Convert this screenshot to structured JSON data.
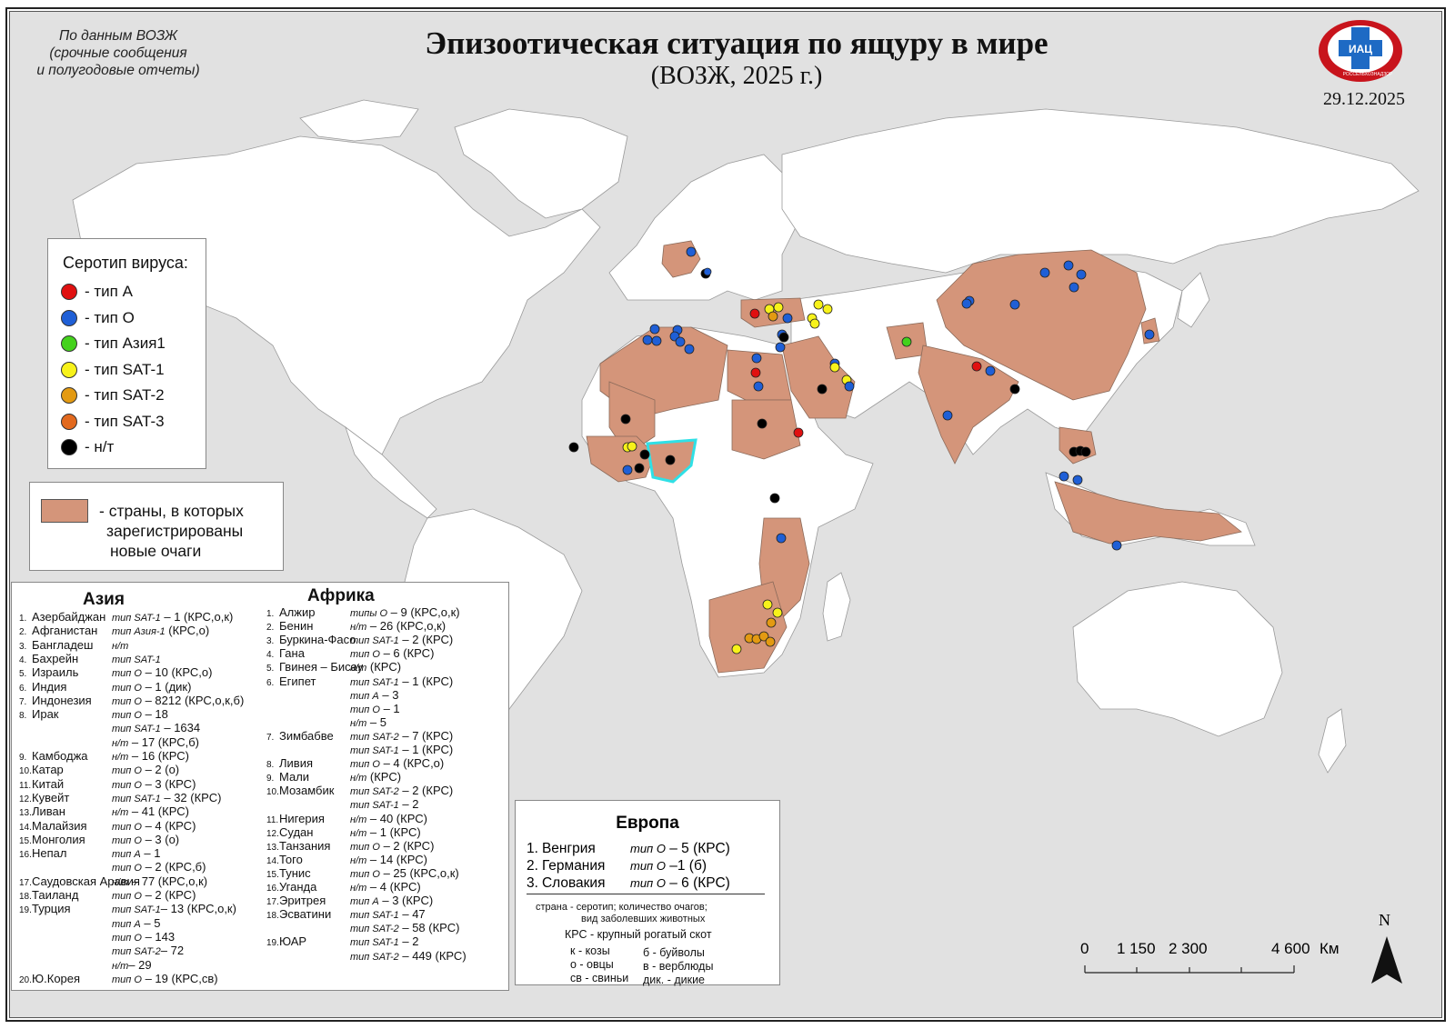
{
  "header": {
    "title": "Эпизоотическая ситуация по ящуру в мире",
    "subtitle": "(ВОЗЖ,  2025 г.)",
    "source_lines": [
      "По данным ВОЗЖ",
      "(срочные сообщения",
      "и полугодовые отчеты)"
    ],
    "date": "29.12.2025",
    "logo_text": "ИАЦ",
    "logo_caption": "РОССЕЛЬХОЗНАДЗОР"
  },
  "legend": {
    "title": "Серотип вируса:",
    "items": [
      {
        "label": "- тип А",
        "color": "#e01010"
      },
      {
        "label": "- тип О",
        "color": "#1f5fd6"
      },
      {
        "label": "- тип Азия1",
        "color": "#44d21c"
      },
      {
        "label": "- тип SAT-1",
        "color": "#f7f21a"
      },
      {
        "label": "- тип SAT-2",
        "color": "#e39a12"
      },
      {
        "label": "- тип SAT-3",
        "color": "#e2691e"
      },
      {
        "label": "- н/т",
        "color": "#000000"
      }
    ]
  },
  "country_legend": {
    "lines": [
      "- страны, в которых",
      "зарегистрированы",
      "новые очаги"
    ],
    "color": "#d4957a"
  },
  "asia": {
    "header": "Азия",
    "rows": [
      {
        "n": "1.",
        "c": "Азербайджан",
        "t": "тип SAT-1",
        "v": " – 1 (КРС,о,к)"
      },
      {
        "n": "2.",
        "c": "Афганистан",
        "t": "тип Азия-1",
        "v": " (КРС,о)"
      },
      {
        "n": "3.",
        "c": "Бангладеш",
        "t": "н/т",
        "v": ""
      },
      {
        "n": "4.",
        "c": "Бахрейн",
        "t": "тип SAT-1",
        "v": ""
      },
      {
        "n": "5.",
        "c": "Израиль",
        "t": "тип О",
        "v": " – 10 (КРС,о)"
      },
      {
        "n": "6.",
        "c": "Индия",
        "t": "тип О",
        "v": " – 1 (дик)"
      },
      {
        "n": "7.",
        "c": "Индонезия",
        "t": "тип О",
        "v": " – 8212 (КРС,о,к,б)"
      },
      {
        "n": "8.",
        "c": "Ирак",
        "t": "тип О",
        "v": " – 18"
      },
      {
        "n": "",
        "c": "",
        "t": "тип SAT-1",
        "v": " – 1634"
      },
      {
        "n": "",
        "c": "",
        "t": "н/т",
        "v": " – 17 (КРС,б)"
      },
      {
        "n": "9.",
        "c": "Камбоджа",
        "t": "н/т",
        "v": " – 16 (КРС)"
      },
      {
        "n": "10.",
        "c": "Катар",
        "t": "тип О",
        "v": " – 2 (о)"
      },
      {
        "n": "11.",
        "c": "Китай",
        "t": "тип О",
        "v": " – 3 (КРС)"
      },
      {
        "n": "12.",
        "c": "Кувейт",
        "t": "тип SAT-1",
        "v": " – 32 (КРС)"
      },
      {
        "n": "13.",
        "c": "Ливан",
        "t": "н/т",
        "v": " – 41 (КРС)"
      },
      {
        "n": "14.",
        "c": "Малайзия",
        "t": "тип О",
        "v": " – 4 (КРС)"
      },
      {
        "n": "15.",
        "c": "Монголия",
        "t": "тип О",
        "v": " – 3 (о)"
      },
      {
        "n": "16.",
        "c": "Непал",
        "t": "тип А",
        "v": " – 1"
      },
      {
        "n": "",
        "c": "",
        "t": "тип О",
        "v": " – 2 (КРС,б)"
      },
      {
        "n": "17.",
        "c": "Саудовская Аравия",
        "t": "н/т",
        "v": " – 77 (КРС,о,к)"
      },
      {
        "n": "18.",
        "c": "Таиланд",
        "t": "тип О",
        "v": " – 2 (КРС)"
      },
      {
        "n": "19.",
        "c": "Турция",
        "t": "тип SAT-1",
        "v": "– 13 (КРС,о,к)"
      },
      {
        "n": "",
        "c": "",
        "t": "тип А",
        "v": " – 5"
      },
      {
        "n": "",
        "c": "",
        "t": "тип О",
        "v": " – 143"
      },
      {
        "n": "",
        "c": "",
        "t": "тип SAT-2",
        "v": "– 72"
      },
      {
        "n": "",
        "c": "",
        "t": "н/т",
        "v": "– 29"
      },
      {
        "n": "20.",
        "c": "Ю.Корея",
        "t": "тип О",
        "v": " – 19 (КРС,св)"
      }
    ]
  },
  "africa": {
    "header": "Африка",
    "rows": [
      {
        "n": "1.",
        "c": "Алжир",
        "t": "типы О",
        "v": " – 9 (КРС,о,к)"
      },
      {
        "n": "2.",
        "c": "Бенин",
        "t": "н/т",
        "v": " – 26 (КРС,о,к)"
      },
      {
        "n": "3.",
        "c": "Буркина-Фасо",
        "t": "тип SAT-1",
        "v": " – 2 (КРС)"
      },
      {
        "n": "4.",
        "c": "Гана",
        "t": "тип О",
        "v": " – 6 (КРС)"
      },
      {
        "n": "5.",
        "c": "Гвинея – Бисау",
        "t": "н/т",
        "v": " (КРС)"
      },
      {
        "n": "6.",
        "c": "Египет",
        "t": "тип SAT-1",
        "v": " – 1 (КРС)"
      },
      {
        "n": "",
        "c": "",
        "t": "тип А",
        "v": " – 3"
      },
      {
        "n": "",
        "c": "",
        "t": "тип О",
        "v": " – 1"
      },
      {
        "n": "",
        "c": "",
        "t": "н/т",
        "v": " – 5"
      },
      {
        "n": "7.",
        "c": "Зимбабве",
        "t": "тип SAT-2",
        "v": " – 7 (КРС)"
      },
      {
        "n": "",
        "c": "",
        "t": "тип SAT-1",
        "v": " – 1 (КРС)"
      },
      {
        "n": "8.",
        "c": "Ливия",
        "t": "тип О",
        "v": " – 4 (КРС,о)"
      },
      {
        "n": "9.",
        "c": "Мали",
        "t": "н/т",
        "v": " (КРС)"
      },
      {
        "n": "10.",
        "c": "Мозамбик",
        "t": "тип SAT-2",
        "v": " – 2 (КРС)"
      },
      {
        "n": "",
        "c": "",
        "t": "тип SAT-1",
        "v": " – 2"
      },
      {
        "n": "11.",
        "c": "Нигерия",
        "t": "н/т",
        "v": " – 40 (КРС)"
      },
      {
        "n": "12.",
        "c": "Судан",
        "t": "н/т",
        "v": " – 1 (КРС)"
      },
      {
        "n": "13.",
        "c": "Танзания",
        "t": "тип О",
        "v": " – 2 (КРС)"
      },
      {
        "n": "14.",
        "c": "Того",
        "t": "н/т",
        "v": " – 14 (КРС)"
      },
      {
        "n": "15.",
        "c": "Тунис",
        "t": "тип О",
        "v": " – 25 (КРС,о,к)"
      },
      {
        "n": "16.",
        "c": "Уганда",
        "t": "н/т",
        "v": " – 4 (КРС)"
      },
      {
        "n": "17.",
        "c": "Эритрея",
        "t": "тип А",
        "v": " – 3 (КРС)"
      },
      {
        "n": "18.",
        "c": "Эсватини",
        "t": "тип SAT-1",
        "v": " – 47"
      },
      {
        "n": "",
        "c": "",
        "t": "тип SAT-2",
        "v": " – 58 (КРС)"
      },
      {
        "n": "19.",
        "c": "ЮАР",
        "t": "тип SAT-1",
        "v": " – 2"
      },
      {
        "n": "",
        "c": "",
        "t": "тип SAT-2",
        "v": " – 449 (КРС)"
      }
    ]
  },
  "europe": {
    "header": "Европа",
    "rows": [
      {
        "n": "1.",
        "c": "Венгрия",
        "t": "тип О",
        "v": " – 5 (КРС)"
      },
      {
        "n": "2.",
        "c": "Германия",
        "t": "тип О",
        "v": " –1 (б)"
      },
      {
        "n": "3.",
        "c": "Словакия",
        "t": "тип О",
        "v": " – 6 (КРС)"
      }
    ],
    "notes": [
      "страна -  серотип; количество очагов;",
      "вид заболевших животных",
      "КРС - крупный рогатый скот",
      "к - козы",
      "б - буйволы",
      "о - овцы",
      "в - верблюды",
      "св - свиньи",
      "дик. - дикие"
    ]
  },
  "scale": {
    "labels": [
      "0",
      "1 150",
      "2 300",
      "4 600"
    ],
    "unit": "Км"
  },
  "north": "N",
  "colors": {
    "ocean": "#e1e1e1",
    "land": "#ffffff",
    "affected": "#d4957a",
    "nigeria_outline": "#2fe0e6"
  }
}
